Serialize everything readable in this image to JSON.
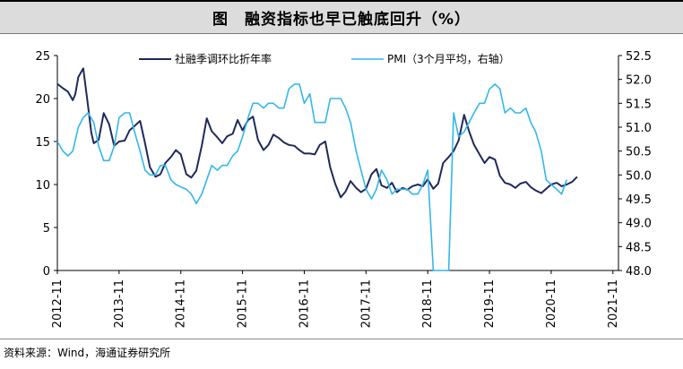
{
  "header": {
    "title": "图　融资指标也早已触底回升（%）"
  },
  "footer": {
    "source": "资料来源：Wind，海通证券研究所"
  },
  "colors": {
    "tsf_line": "#1f2a5a",
    "pmi_line": "#33b7ea",
    "axis": "#000000"
  },
  "chart_data": {
    "type": "line",
    "title": "融资指标也早已触底回升（%）",
    "x_tick_labels": [
      "2012-11",
      "2013-11",
      "2014-11",
      "2015-11",
      "2016-11",
      "2017-11",
      "2018-11",
      "2019-11",
      "2020-11",
      "2021-11"
    ],
    "x_range": [
      2012.83,
      2021.92
    ],
    "ylim_left": [
      0,
      25
    ],
    "y_ticks_left": [
      "0",
      "5",
      "10",
      "15",
      "20",
      "25"
    ],
    "ylim_right": [
      48.0,
      52.5
    ],
    "y_ticks_right": [
      "48.0",
      "48.5",
      "49.0",
      "49.5",
      "50.0",
      "50.5",
      "51.0",
      "51.5",
      "52.0",
      "52.5"
    ],
    "legend": [
      "社融季调环比折年率",
      "PMI（3个月平均，右轴）"
    ],
    "series": [
      {
        "name": "社融季调环比折年率",
        "axis": "left",
        "x": [
          2012.83,
          2012.92,
          2013.0,
          2013.08,
          2013.12,
          2013.17,
          2013.25,
          2013.33,
          2013.38,
          2013.42,
          2013.5,
          2013.58,
          2013.67,
          2013.75,
          2013.83,
          2013.92,
          2014.0,
          2014.08,
          2014.17,
          2014.25,
          2014.33,
          2014.42,
          2014.5,
          2014.58,
          2014.67,
          2014.75,
          2014.83,
          2014.92,
          2015.0,
          2015.08,
          2015.17,
          2015.25,
          2015.33,
          2015.42,
          2015.5,
          2015.58,
          2015.67,
          2015.75,
          2015.83,
          2015.92,
          2016.0,
          2016.08,
          2016.17,
          2016.25,
          2016.33,
          2016.42,
          2016.5,
          2016.58,
          2016.67,
          2016.75,
          2016.83,
          2016.92,
          2017.0,
          2017.08,
          2017.17,
          2017.25,
          2017.33,
          2017.42,
          2017.5,
          2017.58,
          2017.67,
          2017.75,
          2017.83,
          2017.92,
          2018.0,
          2018.08,
          2018.17,
          2018.25,
          2018.33,
          2018.42,
          2018.5,
          2018.58,
          2018.67,
          2018.75,
          2018.83,
          2018.92,
          2019.0,
          2019.08,
          2019.17,
          2019.25,
          2019.33,
          2019.42,
          2019.5,
          2019.58,
          2019.67,
          2019.75,
          2019.83,
          2019.92,
          2020.0,
          2020.08,
          2020.17,
          2020.25,
          2020.33,
          2020.42,
          2020.5,
          2020.58,
          2020.67,
          2020.75,
          2020.83,
          2020.92,
          2021.0,
          2021.08,
          2021.17,
          2021.25,
          2021.33,
          2021.42,
          2021.5,
          2021.58,
          2021.67,
          2021.75,
          2021.83,
          2021.92
        ],
        "values": [
          21.7,
          21.2,
          20.8,
          19.8,
          20.5,
          22.5,
          23.5,
          19.0,
          16.0,
          14.8,
          15.2,
          18.3,
          17.0,
          14.5,
          15.0,
          15.1,
          16.3,
          16.8,
          17.4,
          14.8,
          12.0,
          10.9,
          11.2,
          12.5,
          13.2,
          14.0,
          13.5,
          11.2,
          10.8,
          11.6,
          14.5,
          17.7,
          16.2,
          15.5,
          14.8,
          15.6,
          15.9,
          17.5,
          16.3,
          17.5,
          17.9,
          15.2,
          14.0,
          14.6,
          15.8,
          15.4,
          14.9,
          14.6,
          14.5,
          14.0,
          13.6,
          13.6,
          13.5,
          14.6,
          15.0,
          12.0,
          10.1,
          8.5,
          9.2,
          10.4,
          9.6,
          9.1,
          9.5,
          11.2,
          11.8,
          9.9,
          9.6,
          10.2,
          9.1,
          9.6,
          9.4,
          9.8,
          10.0,
          9.8,
          10.6,
          9.5,
          10.1,
          12.5,
          13.2,
          13.9,
          15.1,
          18.1,
          16.2,
          14.6,
          13.5,
          12.5,
          13.2,
          12.9,
          11.0,
          10.2,
          10.0,
          9.6,
          10.1,
          10.3,
          9.7,
          9.3,
          9.0,
          9.5,
          10.0,
          10.2,
          9.8,
          10.0,
          10.3,
          10.9,
          null,
          null,
          null,
          null,
          null,
          null,
          null,
          null
        ]
      },
      {
        "name": "PMI（3个月平均，右轴）",
        "axis": "right",
        "x": [
          2012.83,
          2012.92,
          2013.0,
          2013.08,
          2013.17,
          2013.25,
          2013.33,
          2013.42,
          2013.5,
          2013.58,
          2013.67,
          2013.75,
          2013.83,
          2013.92,
          2014.0,
          2014.08,
          2014.17,
          2014.25,
          2014.33,
          2014.42,
          2014.5,
          2014.58,
          2014.67,
          2014.75,
          2014.83,
          2014.92,
          2015.0,
          2015.08,
          2015.17,
          2015.25,
          2015.33,
          2015.42,
          2015.5,
          2015.58,
          2015.67,
          2015.75,
          2015.83,
          2015.92,
          2016.0,
          2016.08,
          2016.17,
          2016.25,
          2016.33,
          2016.42,
          2016.5,
          2016.58,
          2016.67,
          2016.75,
          2016.83,
          2016.92,
          2017.0,
          2017.08,
          2017.17,
          2017.25,
          2017.33,
          2017.42,
          2017.5,
          2017.58,
          2017.67,
          2017.75,
          2017.83,
          2017.92,
          2018.0,
          2018.08,
          2018.17,
          2018.25,
          2018.33,
          2018.42,
          2018.5,
          2018.58,
          2018.67,
          2018.75,
          2018.83,
          2018.92,
          2019.0,
          2019.08,
          2019.17,
          2019.25,
          2019.33,
          2019.42,
          2019.5,
          2019.58,
          2019.67,
          2019.75,
          2019.83,
          2019.92,
          2020.0,
          2020.08,
          2020.17,
          2020.25,
          2020.33,
          2020.42,
          2020.5,
          2020.58,
          2020.67,
          2020.75,
          2020.83,
          2020.92,
          2021.0,
          2021.08,
          2021.17,
          2021.25,
          2021.33,
          2021.42,
          2021.5,
          2021.58,
          2021.67,
          2021.75,
          2021.83,
          2021.92
        ],
        "values": [
          50.7,
          50.5,
          50.4,
          50.5,
          51.0,
          51.2,
          51.3,
          51.1,
          50.6,
          50.3,
          50.3,
          50.6,
          51.2,
          51.3,
          51.3,
          50.9,
          50.5,
          50.1,
          50.0,
          50.0,
          50.2,
          50.2,
          49.9,
          49.8,
          49.75,
          49.7,
          49.6,
          49.4,
          49.6,
          49.9,
          50.2,
          50.1,
          50.2,
          50.2,
          50.4,
          50.5,
          50.8,
          51.2,
          51.5,
          51.5,
          51.4,
          51.5,
          51.5,
          51.4,
          51.4,
          51.8,
          51.9,
          51.9,
          51.5,
          51.7,
          51.1,
          51.1,
          51.1,
          51.6,
          51.6,
          51.6,
          51.4,
          51.1,
          50.5,
          50.1,
          49.7,
          49.5,
          49.7,
          50.1,
          49.9,
          49.6,
          49.7,
          49.7,
          49.7,
          49.6,
          49.6,
          49.8,
          50.1,
          48.0,
          48.0,
          48.0,
          48.0,
          51.3,
          50.8,
          50.9,
          51.1,
          51.3,
          51.5,
          51.5,
          51.8,
          51.9,
          51.8,
          51.3,
          51.4,
          51.3,
          51.3,
          51.4,
          51.1,
          50.9,
          50.5,
          49.9,
          49.8,
          49.7,
          49.6,
          49.9,
          null,
          null,
          null,
          null,
          null,
          null,
          null,
          null,
          null,
          null
        ]
      }
    ]
  }
}
